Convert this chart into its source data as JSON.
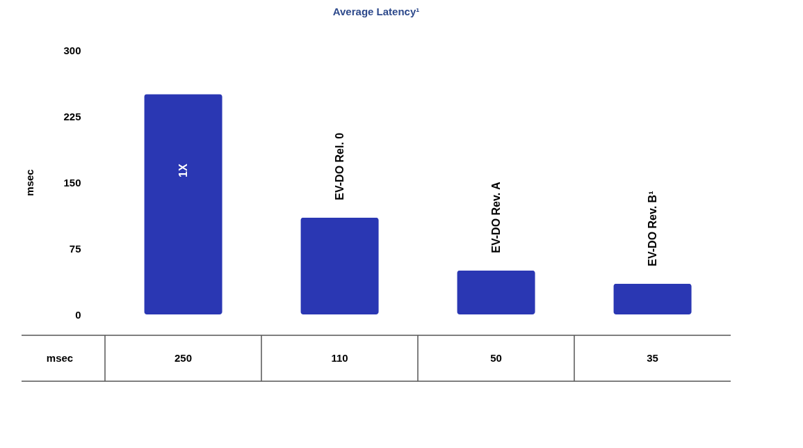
{
  "chart_data": {
    "type": "bar",
    "title": "Average Latency¹",
    "ylabel": "msec",
    "categories": [
      "1X",
      "EV-DO Rel. 0",
      "EV-DO Rev. A",
      "EV-DO Rev. B¹"
    ],
    "values": [
      250,
      110,
      50,
      35
    ],
    "color": "#2a37b3",
    "ylim": [
      0,
      300
    ],
    "yticks": [
      0,
      75,
      150,
      225,
      300
    ],
    "grid": false,
    "data_labels": true
  }
}
